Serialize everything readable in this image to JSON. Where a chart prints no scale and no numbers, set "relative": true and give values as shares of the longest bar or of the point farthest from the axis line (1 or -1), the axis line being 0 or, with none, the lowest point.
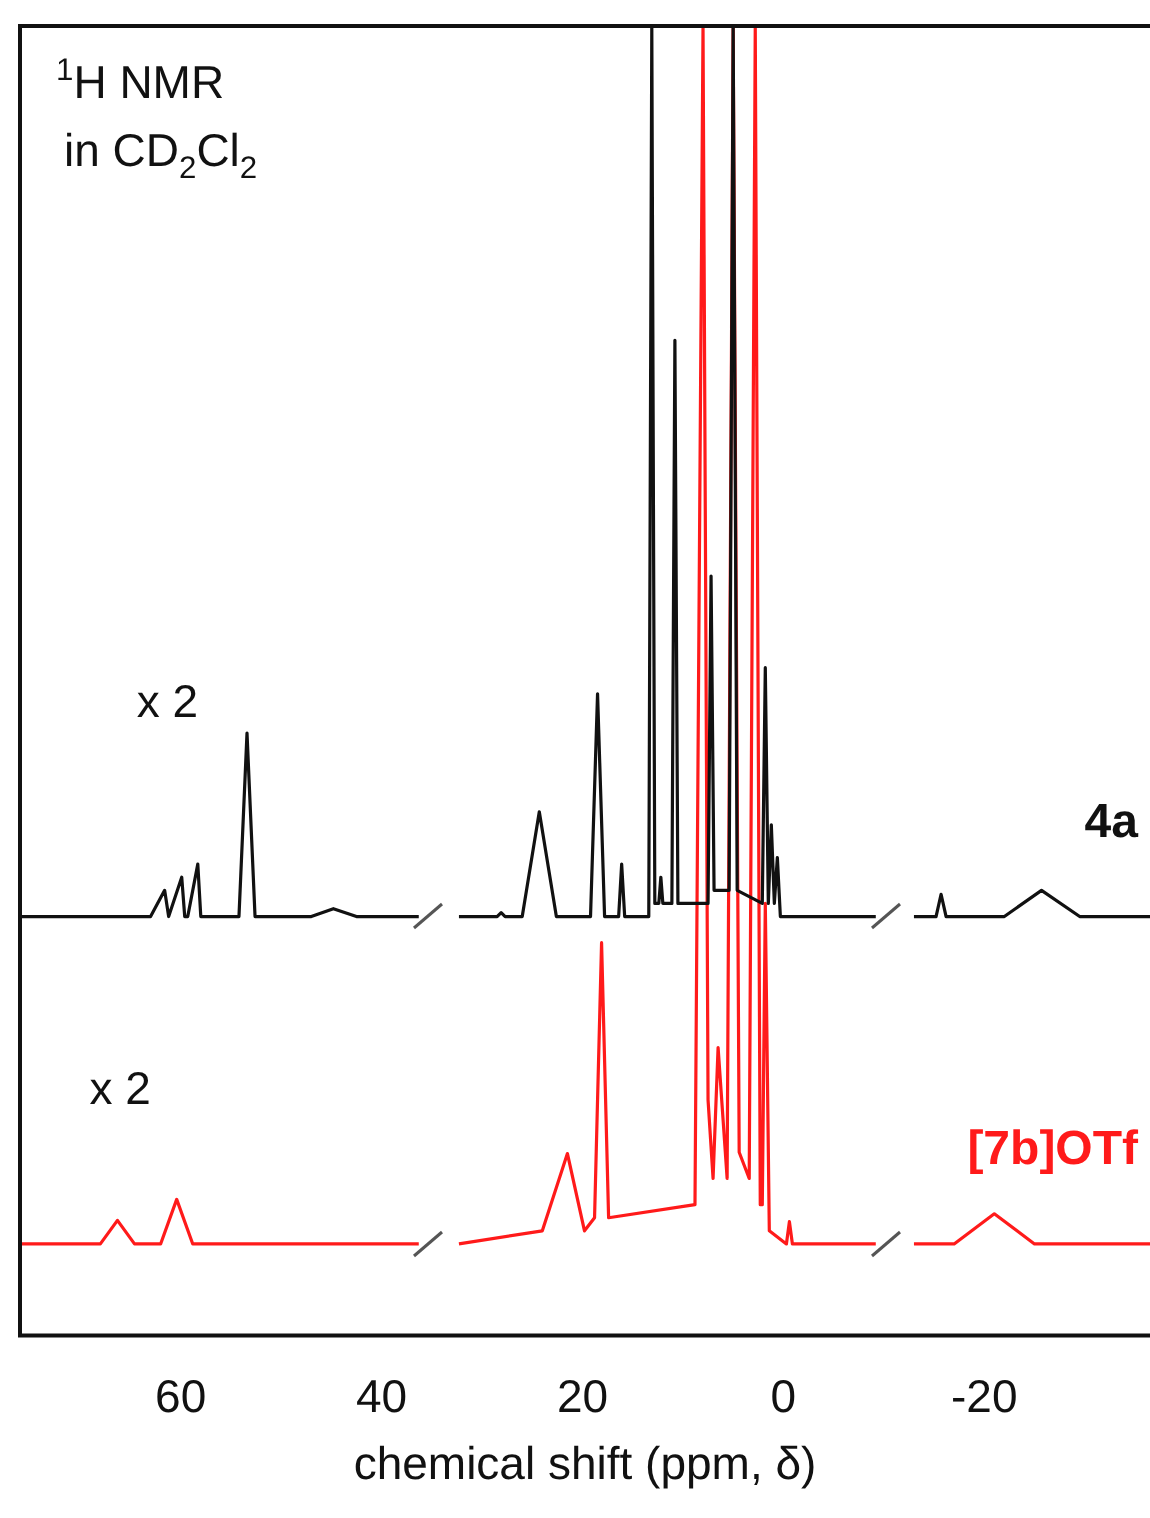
{
  "chart_data": {
    "type": "line",
    "relative": true,
    "xlabel": "chemical shift (ppm, δ)",
    "xlim": [
      76,
      -36.5
    ],
    "xticks": [
      60,
      40,
      20,
      0,
      -20
    ],
    "grid": false,
    "legend": false,
    "marker": "none",
    "line_style": "solid",
    "annotations": [
      "$^{1}$H NMR",
      "in CD$_{2}$Cl$_{2}$",
      "x 2",
      "x 2"
    ],
    "series": [
      {
        "name": "4a",
        "color": "#111111",
        "x": [
          76,
          63,
          61.6,
          61.2,
          59.9,
          59.6,
          59.3,
          58.3,
          58.0,
          57.6,
          54.2,
          53.4,
          52.6,
          47,
          44.8,
          42.5,
          36.3,
          34.3,
          32.3,
          28.5,
          28.1,
          27.7,
          26,
          24.3,
          22.6,
          19.2,
          18.5,
          17.8,
          16.4,
          16.1,
          15.8,
          13.4,
          13.1,
          12.8,
          12.4,
          12.2,
          12.0,
          11.1,
          10.8,
          10.5,
          7.5,
          7.2,
          6.9,
          5.4,
          5.0,
          4.6,
          2.1,
          1.8,
          1.5,
          1.2,
          0.9,
          0.6,
          0.3,
          -9.2,
          -11.1,
          -13,
          -15.2,
          -15.7,
          -16.2,
          -22,
          -25.7,
          -29.5,
          -36.5
        ],
        "values": [
          0.32,
          0.32,
          0.34,
          0.32,
          0.35,
          0.32,
          0.32,
          0.36,
          0.32,
          0.32,
          0.32,
          0.46,
          0.32,
          0.32,
          0.326,
          0.32,
          0.32,
          null,
          0.32,
          0.32,
          0.323,
          0.32,
          0.32,
          0.4,
          0.32,
          0.32,
          0.49,
          0.32,
          0.32,
          0.36,
          0.32,
          0.32,
          1.0,
          0.33,
          0.33,
          0.35,
          0.33,
          0.33,
          0.76,
          0.33,
          0.33,
          0.58,
          0.34,
          0.34,
          1.0,
          0.34,
          0.33,
          0.51,
          0.33,
          0.39,
          0.33,
          0.365,
          0.32,
          0.32,
          null,
          0.32,
          0.32,
          0.337,
          0.32,
          0.32,
          0.34,
          0.32,
          0.32
        ]
      },
      {
        "name": "[7b]OTf",
        "color": "#ff1a1a",
        "x": [
          76,
          68,
          66.3,
          64.6,
          62,
          60.4,
          58.8,
          36.3,
          34.3,
          32.3,
          24,
          21.5,
          19.8,
          18.8,
          18.1,
          17.4,
          8.8,
          8.0,
          7.5,
          7.0,
          6.5,
          5.6,
          5.0,
          4.4,
          3.4,
          2.8,
          2.3,
          2.1,
          1.8,
          1.4,
          -0.3,
          -0.6,
          -0.9,
          -9.2,
          -11.1,
          -13,
          -17,
          -21,
          -25,
          -36.5
        ],
        "values": [
          0.07,
          0.07,
          0.088,
          0.07,
          0.07,
          0.104,
          0.07,
          0.07,
          null,
          0.07,
          0.08,
          0.139,
          0.08,
          0.09,
          0.3,
          0.09,
          0.1,
          1.0,
          0.18,
          0.12,
          0.22,
          0.12,
          1.0,
          0.14,
          0.12,
          1.0,
          0.1,
          0.1,
          0.33,
          0.08,
          0.07,
          0.087,
          0.07,
          0.07,
          null,
          0.07,
          0.07,
          0.093,
          0.07,
          0.07
        ]
      }
    ]
  }
}
